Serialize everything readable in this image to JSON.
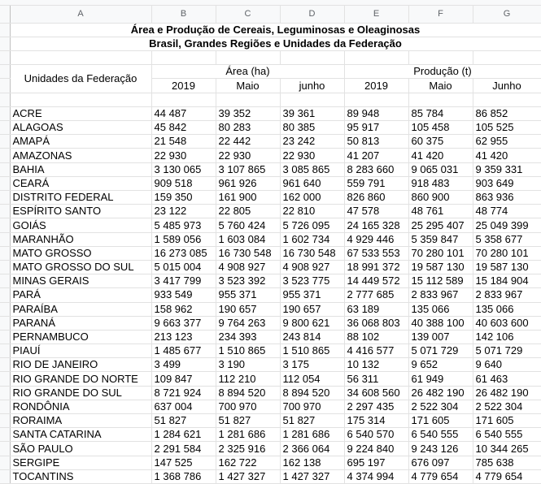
{
  "columns": [
    "A",
    "B",
    "C",
    "D",
    "E",
    "F",
    "G"
  ],
  "title_line1": "Área e Produção de Cereais, Leguminosas e Oleaginosas",
  "title_line2": "Brasil, Grandes Regiões e Unidades da Federação",
  "header": {
    "uf_label": "Unidades da Federação",
    "area_label": "Área (ha)",
    "producao_label": "Produção (t)",
    "sub": [
      "2019",
      "Maio",
      "junho",
      "2019",
      "Maio",
      "Junho"
    ]
  },
  "rows": [
    [
      "ACRE",
      "44 487",
      "39 352",
      "39 361",
      "89 948",
      "85 784",
      "86 852"
    ],
    [
      "ALAGOAS",
      "45 842",
      "80 283",
      "80 385",
      "95 917",
      "105 458",
      "105 525"
    ],
    [
      "AMAPÁ",
      "21 548",
      "22 442",
      "23 242",
      "50 813",
      "60 375",
      "62 955"
    ],
    [
      "AMAZONAS",
      "22 930",
      "22 930",
      "22 930",
      "41 207",
      "41 420",
      "41 420"
    ],
    [
      "BAHIA",
      "3 130 065",
      "3 107 865",
      "3 085 865",
      "8 283 660",
      "9 065 031",
      "9 359 331"
    ],
    [
      "CEARÁ",
      "909 518",
      "961 926",
      "961 640",
      "559 791",
      "918 483",
      "903 649"
    ],
    [
      "DISTRITO FEDERAL",
      "159 350",
      "161 900",
      "162 000",
      "826 860",
      "860 900",
      "863 936"
    ],
    [
      "ESPÍRITO SANTO",
      "23 122",
      "22 805",
      "22 810",
      "47 578",
      "48 761",
      "48 774"
    ],
    [
      "GOIÁS",
      "5 485 973",
      "5 760 424",
      "5 726 095",
      "24 165 328",
      "25 295 407",
      "25 049 399"
    ],
    [
      "MARANHÃO",
      "1 589 056",
      "1 603 084",
      "1 602 734",
      "4 929 446",
      "5 359 847",
      "5 358 677"
    ],
    [
      "MATO GROSSO",
      "16 273 085",
      "16 730 548",
      "16 730 548",
      "67 533 553",
      "70 280 101",
      "70 280 101"
    ],
    [
      "MATO GROSSO DO SUL",
      "5 015 004",
      "4 908 927",
      "4 908 927",
      "18 991 372",
      "19 587 130",
      "19 587 130"
    ],
    [
      "MINAS GERAIS",
      "3 417 799",
      "3 523 392",
      "3 523 775",
      "14 449 572",
      "15 112 589",
      "15 184 904"
    ],
    [
      "PARÁ",
      "933 549",
      "955 371",
      "955 371",
      "2 777 685",
      "2 833 967",
      "2 833 967"
    ],
    [
      "PARAÍBA",
      "158 962",
      "190 657",
      "190 657",
      "63 189",
      "135 066",
      "135 066"
    ],
    [
      "PARANÁ",
      "9 663 377",
      "9 764 263",
      "9 800 621",
      "36 068 803",
      "40 388 100",
      "40 603 600"
    ],
    [
      "PERNAMBUCO",
      "213 123",
      "234 393",
      "243 814",
      "88 102",
      "139 007",
      "142 106"
    ],
    [
      "PIAUÍ",
      "1 485 677",
      "1 510 865",
      "1 510 865",
      "4 416 577",
      "5 071 729",
      "5 071 729"
    ],
    [
      "RIO DE JANEIRO",
      "3 499",
      "3 190",
      "3 175",
      "10 132",
      "9 652",
      "9 640"
    ],
    [
      "RIO GRANDE DO NORTE",
      "109 847",
      "112 210",
      "112 054",
      "56 311",
      "61 949",
      "61 463"
    ],
    [
      "RIO GRANDE DO SUL",
      "8 721 924",
      "8 894 520",
      "8 894 520",
      "34 608 560",
      "26 482 190",
      "26 482 190"
    ],
    [
      "RONDÔNIA",
      "637 004",
      "700 970",
      "700 970",
      "2 297 435",
      "2 522 304",
      "2 522 304"
    ],
    [
      "RORAIMA",
      "51 827",
      "51 827",
      "51 827",
      "175 314",
      "171 605",
      "171 605"
    ],
    [
      "SANTA CATARINA",
      "1 284 621",
      "1 281 686",
      "1 281 686",
      "6 540 570",
      "6 540 555",
      "6 540 555"
    ],
    [
      "SÃO PAULO",
      "2 291 584",
      "2 325 916",
      "2 366 064",
      "9 224 840",
      "9 243 126",
      "10 344 265"
    ],
    [
      "SERGIPE",
      "147 525",
      "162 722",
      "162 138",
      "695 197",
      "676 097",
      "785 638"
    ],
    [
      "TOCANTINS",
      "1 368 786",
      "1 427 327",
      "1 427 327",
      "4 374 994",
      "4 779 654",
      "4 779 654"
    ]
  ]
}
